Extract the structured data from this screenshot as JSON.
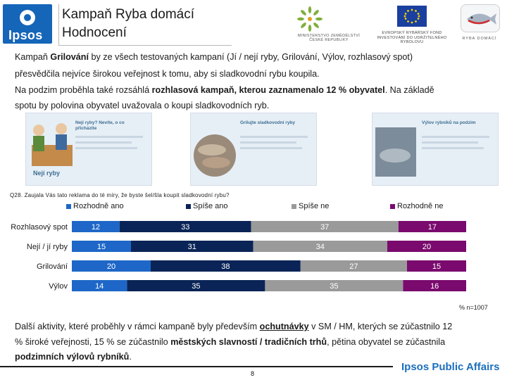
{
  "header": {
    "logo_text": "Ipsos",
    "title_line1": "Kampaň Ryba domácí",
    "title_line2": "Hodnocení",
    "mz_caption": "MINISTERSTVO ZEMĚDĚLSTVÍ ČESKÉ REPUBLIKY",
    "eu_caption": "EVROPSKÝ RYBÁŘSKÝ FOND INVESTOVÁNÍ DO UDRŽITELNÉHO RYBOLOVU",
    "ryba_caption": "RYBA DOMÁCÍ"
  },
  "intro": {
    "l1_a": "Kampaň ",
    "l1_b": "Grilování",
    "l1_c": " by ze všech testovaných kampaní (Jí / nejí ryby, Grilování, Výlov, rozhlasový spot)",
    "l2": "přesvědčila nejvíce širokou veřejnost k tomu, aby si sladkovodní rybu koupila.",
    "l3_a": "Na podzim proběhla také rozsáhlá ",
    "l3_b": "rozhlasová kampaň, kterou zaznamenalo 12 % obyvatel",
    "l3_c": ". Na základě",
    "l4": "spotu by polovina obyvatel uvažovala o koupi sladkovodních ryb."
  },
  "photos": [
    {
      "title": "Nejí ryby? Nevíte, o co přicházíte",
      "caption": "Nejí ryby"
    },
    {
      "title": "Grilujte sladkovodní ryby",
      "caption": ""
    },
    {
      "title": "Výlov rybníků na podzim",
      "caption": ""
    }
  ],
  "question": "Q28. Zaujala Vás tato reklama do té míry, že byste šel/šla koupit sladkovodní rybu?",
  "n_note": "% n=1007",
  "chart_data": {
    "type": "bar",
    "orientation": "horizontal",
    "stacked": true,
    "categories": [
      "Rozhlasový spot",
      "Nejí / jí ryby",
      "Grilování",
      "Výlov"
    ],
    "series": [
      {
        "name": "Rozhodně ano",
        "color": "#1e67c8",
        "values": [
          12,
          15,
          20,
          14
        ]
      },
      {
        "name": "Spíše ano",
        "color": "#0a2457",
        "values": [
          33,
          31,
          38,
          35
        ]
      },
      {
        "name": "Spíše ne",
        "color": "#9a9a9a",
        "values": [
          37,
          34,
          27,
          35
        ]
      },
      {
        "name": "Rozhodně ne",
        "color": "#7a0a6e",
        "values": [
          17,
          20,
          15,
          16
        ]
      }
    ],
    "unit": "%",
    "legend_position": "top"
  },
  "bottom": {
    "l1_a": "Další aktivity, které proběhly v rámci kampaně byly především ",
    "l1_b": "ochutnávky",
    "l1_c": " v SM / HM, kterých se zúčastnilo 12",
    "l2_a": "% široké veřejnosti, 15 % se zúčastnilo ",
    "l2_b": "městských slavností / tradičních trhů",
    "l2_c": ", pětina obyvatel se zúčastnila",
    "l3_a": "podzimních výlovů rybníků",
    "l3_b": "."
  },
  "footer": {
    "brand": "Ipsos Public Affairs",
    "page": "8"
  }
}
